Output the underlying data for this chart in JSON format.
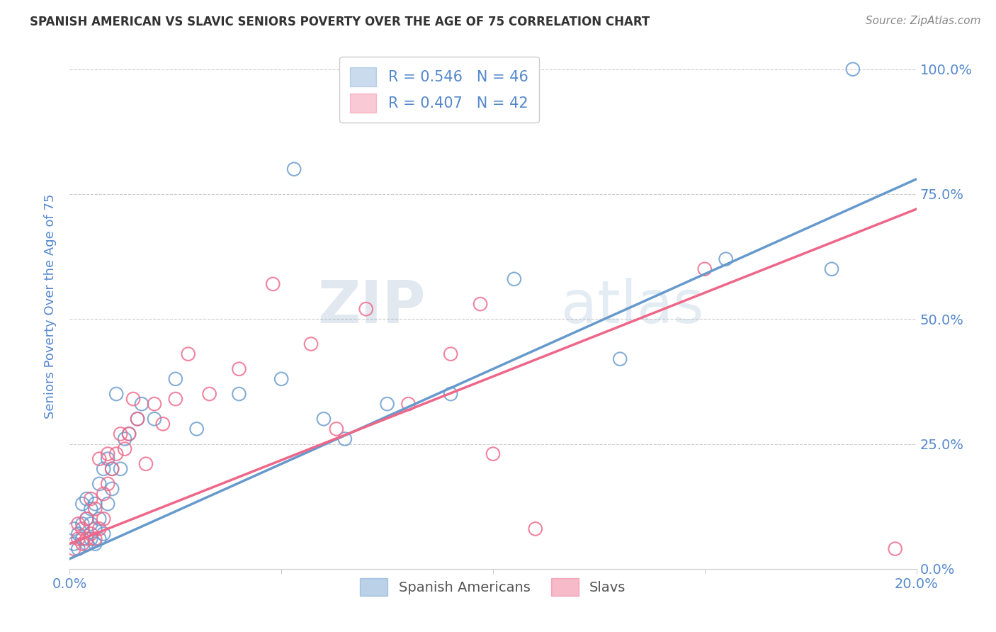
{
  "title": "SPANISH AMERICAN VS SLAVIC SENIORS POVERTY OVER THE AGE OF 75 CORRELATION CHART",
  "source": "Source: ZipAtlas.com",
  "ylabel": "Seniors Poverty Over the Age of 75",
  "xlim": [
    0.0,
    0.2
  ],
  "ylim": [
    0.0,
    1.05
  ],
  "yticks": [
    0.0,
    0.25,
    0.5,
    0.75,
    1.0
  ],
  "ytick_labels": [
    "0.0%",
    "25.0%",
    "50.0%",
    "75.0%",
    "100.0%"
  ],
  "xticks": [
    0.0,
    0.05,
    0.1,
    0.15,
    0.2
  ],
  "xtick_labels": [
    "0.0%",
    "",
    "",
    "",
    "20.0%"
  ],
  "blue_color": "#6699CC",
  "pink_color": "#EE6688",
  "legend_blue_r": "R = 0.546",
  "legend_blue_n": "N = 46",
  "legend_pink_r": "R = 0.407",
  "legend_pink_n": "N = 42",
  "watermark_zip": "ZIP",
  "watermark_atlas": "atlas",
  "background_color": "#FFFFFF",
  "grid_color": "#CCCCCC",
  "axis_label_color": "#5588CC",
  "title_color": "#333333",
  "blue_scatter_x": [
    0.001,
    0.001,
    0.002,
    0.002,
    0.003,
    0.003,
    0.003,
    0.004,
    0.004,
    0.004,
    0.005,
    0.005,
    0.005,
    0.006,
    0.006,
    0.006,
    0.007,
    0.007,
    0.007,
    0.008,
    0.008,
    0.009,
    0.009,
    0.01,
    0.01,
    0.011,
    0.012,
    0.013,
    0.014,
    0.016,
    0.017,
    0.02,
    0.025,
    0.03,
    0.04,
    0.05,
    0.053,
    0.06,
    0.065,
    0.075,
    0.09,
    0.105,
    0.13,
    0.155,
    0.18,
    0.185
  ],
  "blue_scatter_y": [
    0.05,
    0.08,
    0.04,
    0.07,
    0.06,
    0.09,
    0.13,
    0.05,
    0.1,
    0.14,
    0.06,
    0.09,
    0.12,
    0.05,
    0.08,
    0.13,
    0.06,
    0.1,
    0.17,
    0.07,
    0.2,
    0.13,
    0.22,
    0.16,
    0.2,
    0.35,
    0.2,
    0.26,
    0.27,
    0.3,
    0.33,
    0.3,
    0.38,
    0.28,
    0.35,
    0.38,
    0.8,
    0.3,
    0.26,
    0.33,
    0.35,
    0.58,
    0.42,
    0.62,
    0.6,
    1.0
  ],
  "pink_scatter_x": [
    0.001,
    0.002,
    0.002,
    0.003,
    0.003,
    0.004,
    0.004,
    0.005,
    0.005,
    0.006,
    0.006,
    0.007,
    0.007,
    0.008,
    0.008,
    0.009,
    0.009,
    0.01,
    0.011,
    0.012,
    0.013,
    0.014,
    0.015,
    0.016,
    0.018,
    0.02,
    0.022,
    0.025,
    0.028,
    0.033,
    0.04,
    0.048,
    0.057,
    0.063,
    0.07,
    0.08,
    0.09,
    0.097,
    0.1,
    0.11,
    0.15,
    0.195
  ],
  "pink_scatter_y": [
    0.04,
    0.06,
    0.09,
    0.05,
    0.08,
    0.06,
    0.1,
    0.07,
    0.14,
    0.06,
    0.12,
    0.08,
    0.22,
    0.1,
    0.15,
    0.17,
    0.23,
    0.2,
    0.23,
    0.27,
    0.24,
    0.27,
    0.34,
    0.3,
    0.21,
    0.33,
    0.29,
    0.34,
    0.43,
    0.35,
    0.4,
    0.57,
    0.45,
    0.28,
    0.52,
    0.33,
    0.43,
    0.53,
    0.23,
    0.08,
    0.6,
    0.04
  ],
  "blue_line_x0": 0.0,
  "blue_line_y0": 0.02,
  "blue_line_x1": 0.2,
  "blue_line_y1": 0.78,
  "pink_line_x0": 0.0,
  "pink_line_y0": 0.05,
  "pink_line_x1": 0.2,
  "pink_line_y1": 0.72
}
